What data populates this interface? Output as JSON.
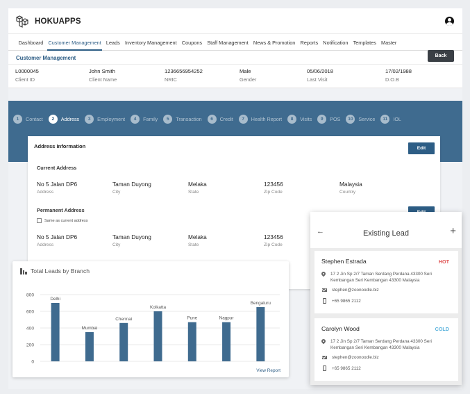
{
  "app": {
    "logo_text": "HOKUAPPS"
  },
  "nav": {
    "items": [
      "Dashboard",
      "Customer Management",
      "Leads",
      "Inventory Management",
      "Coupons",
      "Staff Management",
      "News & Promotion",
      "Reports",
      "Notification",
      "Templates",
      "Master"
    ],
    "active": "Customer Management"
  },
  "section": {
    "title": "Customer Management",
    "back_label": "Back"
  },
  "client": [
    {
      "value": "L0000045",
      "label": "Client ID"
    },
    {
      "value": "John Smith",
      "label": "Client Name"
    },
    {
      "value": "1236656954252",
      "label": "NRIC"
    },
    {
      "value": "Male",
      "label": "Gender"
    },
    {
      "value": "05/06/2018",
      "label": "Last Visit"
    },
    {
      "value": "17/02/1988",
      "label": "D.O.B"
    }
  ],
  "steps": [
    {
      "num": "1",
      "label": "Contact"
    },
    {
      "num": "2",
      "label": "Address",
      "active": true
    },
    {
      "num": "3",
      "label": "Employment"
    },
    {
      "num": "4",
      "label": "Family"
    },
    {
      "num": "5",
      "label": "Transaction"
    },
    {
      "num": "6",
      "label": "Credit"
    },
    {
      "num": "7",
      "label": "Health Report"
    },
    {
      "num": "8",
      "label": "Visits"
    },
    {
      "num": "9",
      "label": "POS"
    },
    {
      "num": "10",
      "label": "Service"
    },
    {
      "num": "11",
      "label": "IOL"
    }
  ],
  "address": {
    "title": "Address Information",
    "edit_label": "Edit",
    "current": {
      "title": "Current Address",
      "fields": [
        {
          "value": "No 5 Jalan DP6",
          "label": "Address"
        },
        {
          "value": "Taman Duyong",
          "label": "City"
        },
        {
          "value": "Melaka",
          "label": "State"
        },
        {
          "value": "123456",
          "label": "Zip Code"
        },
        {
          "value": "Malaysia",
          "label": "Country"
        }
      ]
    },
    "permanent": {
      "title": "Permanent Address",
      "edit_label": "Edit",
      "same_label": "Same as current address",
      "fields": [
        {
          "value": "No 5 Jalan DP6",
          "label": "Address"
        },
        {
          "value": "Taman Duyong",
          "label": "City"
        },
        {
          "value": "Melaka",
          "label": "State"
        },
        {
          "value": "123456",
          "label": "Zip Code"
        }
      ]
    }
  },
  "chart_card": {
    "title": "Total Leads by Branch",
    "view_report": "View Report"
  },
  "chart_data": {
    "type": "bar",
    "title": "Total Leads by Branch",
    "categories": [
      "Delhi",
      "Mumbai",
      "Chennai",
      "Kolkatta",
      "Pune",
      "Nagpur",
      "Bengaluru"
    ],
    "values": [
      700,
      350,
      460,
      600,
      470,
      470,
      650
    ],
    "ylim": [
      0,
      800
    ],
    "yticks": [
      0,
      200,
      400,
      600,
      800
    ],
    "grid": true,
    "bar_color": "#3f6b8f"
  },
  "leads": {
    "title": "Existing Lead",
    "items": [
      {
        "name": "Stephen Estrada",
        "status": "HOT",
        "status_color": "#e05555",
        "address": "17 2 Jin Sp 2/7 Taman Serdang Perdana 43300 Seri Kembangan Seri Kembangan 43300 Malaysia",
        "email": "stephen@zoonoodle.biz",
        "phone": "+65 9865 2112"
      },
      {
        "name": "Carolyn Wood",
        "status": "COLD",
        "status_color": "#5bb3dd",
        "address": "17 2 Jin Sp 2/7 Taman Serdang Perdana 43300 Seri Kembangan Seri Kembangan 43300 Malaysia",
        "email": "stephen@zoonoodle.biz",
        "phone": "+65 9865 2112"
      }
    ]
  },
  "colors": {
    "primary": "#2d5d85",
    "band": "#3f6b8f"
  }
}
